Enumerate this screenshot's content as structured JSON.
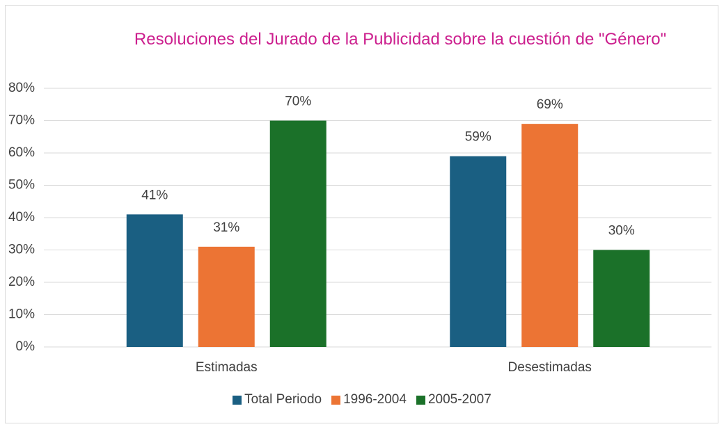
{
  "chart_data": {
    "type": "bar",
    "title": "Resoluciones del Jurado de la Publicidad sobre la cuestión de \"Género\"",
    "categories": [
      "Estimadas",
      "Desestimadas"
    ],
    "series": [
      {
        "name": "Total Periodo",
        "color": "#1a5f82",
        "values": [
          41,
          59
        ],
        "value_labels": [
          "41%",
          "59%"
        ]
      },
      {
        "name": "1996-2004",
        "color": "#ec7434",
        "values": [
          31,
          69
        ],
        "value_labels": [
          "31%",
          "69%"
        ]
      },
      {
        "name": "2005-2007",
        "color": "#1b7129",
        "values": [
          70,
          30
        ],
        "value_labels": [
          "70%",
          "30%"
        ]
      }
    ],
    "ylim": [
      0,
      80
    ],
    "yticks": [
      {
        "value": 0,
        "label": "0%"
      },
      {
        "value": 10,
        "label": "10%"
      },
      {
        "value": 20,
        "label": "20%"
      },
      {
        "value": 30,
        "label": "30%"
      },
      {
        "value": 40,
        "label": "40%"
      },
      {
        "value": 50,
        "label": "50%"
      },
      {
        "value": 60,
        "label": "60%"
      },
      {
        "value": 70,
        "label": "70%"
      },
      {
        "value": 80,
        "label": "80%"
      }
    ],
    "grid": true,
    "legend": "bottom"
  }
}
